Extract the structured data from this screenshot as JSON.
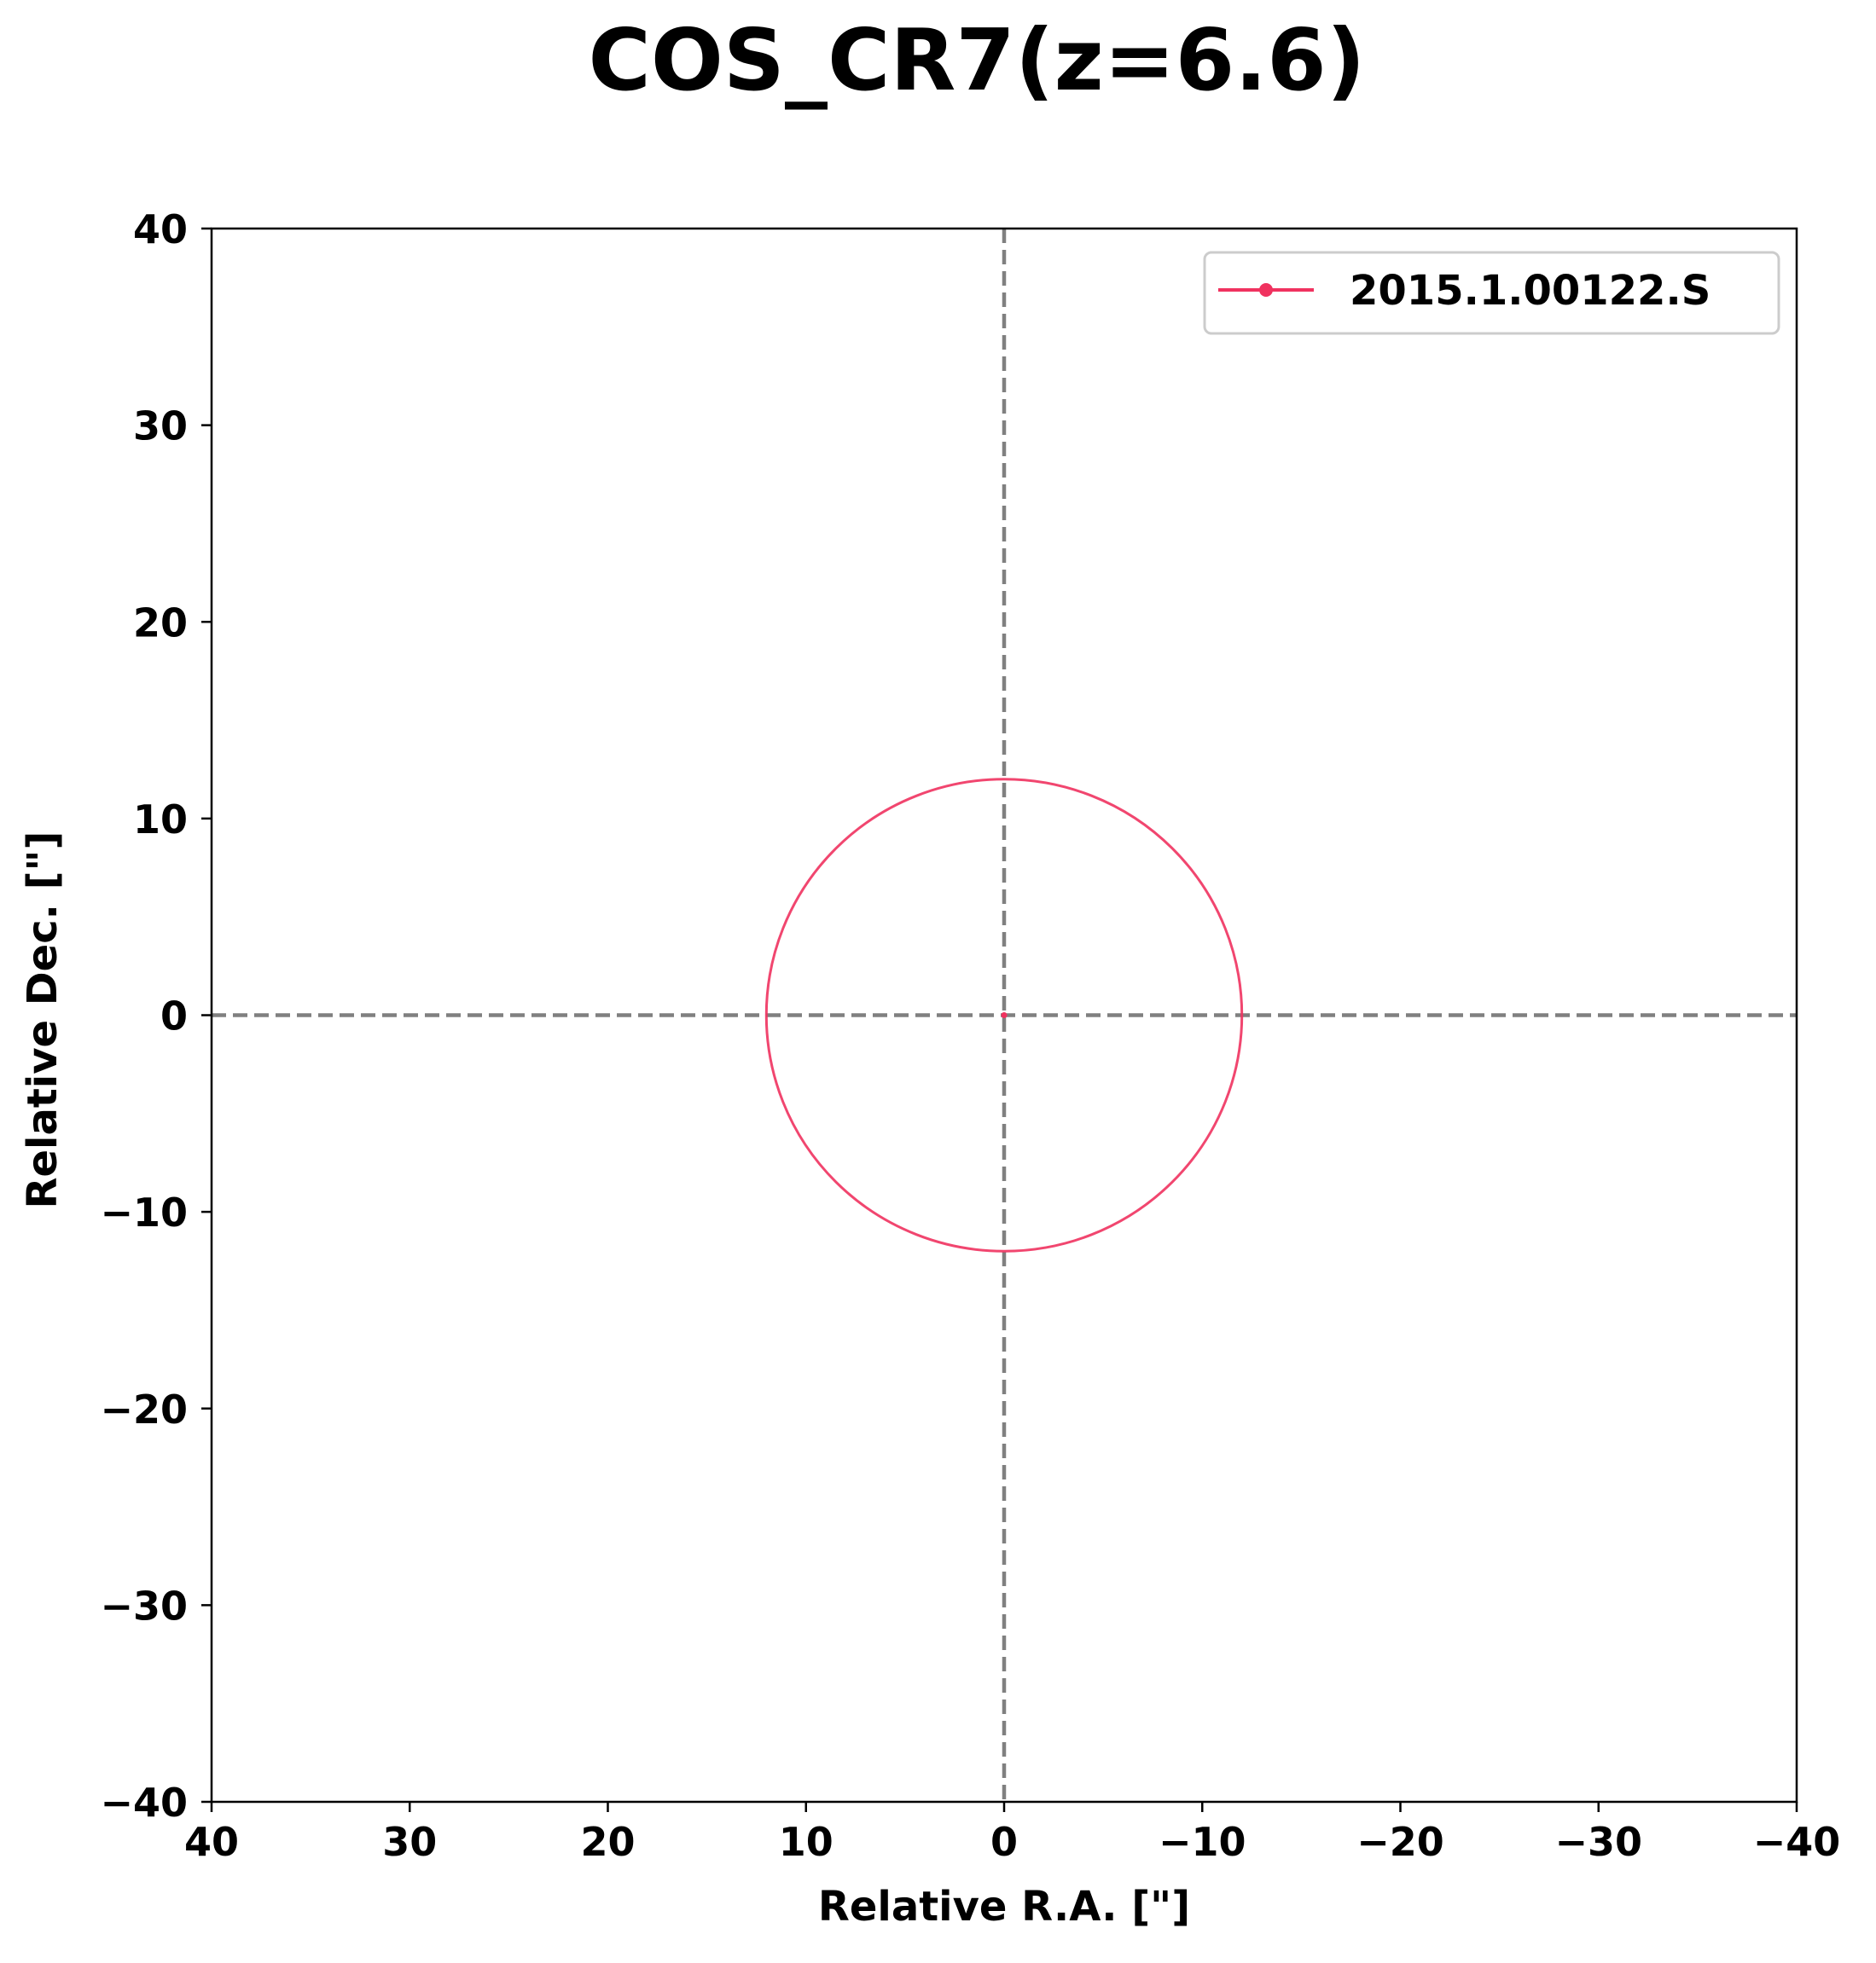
{
  "chart_data": {
    "type": "scatter",
    "title": "COS_CR7(z=6.6)",
    "xlabel": "Relative R.A. [\"]",
    "ylabel": "Relative Dec. [\"]",
    "xlim": [
      40,
      -40
    ],
    "ylim": [
      -40,
      40
    ],
    "x_ticks": [
      40,
      30,
      20,
      10,
      0,
      -10,
      -20,
      -30,
      -40
    ],
    "y_ticks": [
      40,
      30,
      20,
      10,
      0,
      -10,
      -20,
      -30,
      -40
    ],
    "x_tick_labels": [
      "40",
      "30",
      "20",
      "10",
      "0",
      "−10",
      "−20",
      "−30",
      "−40"
    ],
    "y_tick_labels": [
      "40",
      "30",
      "20",
      "10",
      "0",
      "−10",
      "−20",
      "−30",
      "−40"
    ],
    "reference_lines": {
      "x": 0,
      "y": 0,
      "style": "dashed",
      "color": "#808080"
    },
    "legend_position": "top-right",
    "series": [
      {
        "name": "2015.1.00122.S",
        "color": "#f0325f",
        "points": [
          {
            "x": 0,
            "y": 0
          }
        ],
        "circles": [
          {
            "center_x": 0,
            "center_y": 0,
            "radius": 12
          }
        ]
      }
    ]
  }
}
